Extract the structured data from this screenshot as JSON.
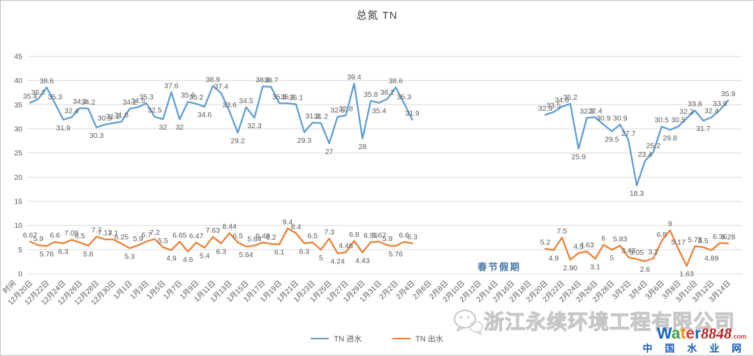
{
  "title": "总氮 TN",
  "holiday_note": {
    "text": "春节假期",
    "color": "#4574a9"
  },
  "legend": [
    {
      "label": "TN 进水",
      "color": "#5b9bd5"
    },
    {
      "label": "TN 出水",
      "color": "#ed7d31"
    }
  ],
  "watermark": {
    "company": "浙江永续环境工程有限公司",
    "wechat_icon": "wechat-bubbles",
    "logo_letters": [
      {
        "ch": "W",
        "color": "#1565c0"
      },
      {
        "ch": "a",
        "color": "#43a047"
      },
      {
        "ch": "t",
        "color": "#fb8c00"
      },
      {
        "ch": "e",
        "color": "#e53935"
      },
      {
        "ch": "r",
        "color": "#1565c0"
      }
    ],
    "logo_number": "8848",
    "logo_number_color": "#b71c1c",
    "logo_tld": ".com",
    "logo_tld_color": "#e53935",
    "site_name": "中 国 水 业 网",
    "site_name_color": "#1259be"
  },
  "chart_data": {
    "type": "line",
    "title": "总氮 TN",
    "grid": "horizontal",
    "legend_position": "bottom",
    "y_axis": {
      "min": 0,
      "max": 45,
      "step": 5,
      "ticks": [
        "0",
        "5",
        "10",
        "15",
        "20",
        "25",
        "30",
        "35",
        "40",
        "45"
      ]
    },
    "x_axis": {
      "axis_title": "时间",
      "tick_every_days": 2,
      "tick_labels": [
        "12月20日",
        "12月22日",
        "12月24日",
        "12月26日",
        "12月28日",
        "12月30日",
        "1月1日",
        "1月3日",
        "1月5日",
        "1月7日",
        "1月9日",
        "1月11日",
        "1月13日",
        "1月15日",
        "1月17日",
        "1月19日",
        "1月21日",
        "1月23日",
        "1月25日",
        "1月27日",
        "1月29日",
        "1月31日",
        "2月2日",
        "2月4日",
        "2月6日",
        "2月8日",
        "2月10日",
        "2月12日",
        "2月14日",
        "2月16日",
        "2月18日",
        "2月20日",
        "2月22日",
        "2月24日",
        "2月26日",
        "2月28日",
        "3月2日",
        "3月4日",
        "3月6日",
        "3月8日",
        "3月10日",
        "3月12日",
        "3月14日"
      ],
      "days_total": 85
    },
    "gap_note": "no data between 2月5日 and 2月19日 (春节假期)",
    "series": [
      {
        "name": "TN 进水",
        "color": "#5b9bd5",
        "segments": [
          {
            "start_index": 0,
            "values": [
              "35.4",
              "36.2",
              "38.6",
              "35.3",
              "31.9",
              "32.4",
              "34.3",
              "34.2",
              "30.3",
              "30.9",
              "31.2",
              "31.5",
              "34.2",
              "34.5",
              "35.3",
              "32.5",
              "32",
              "37.6",
              "32",
              "35.6",
              "35.2",
              "34.6",
              "38.9",
              "37.4",
              "33.6",
              "29.2",
              "34.5",
              "32.3",
              "38.8",
              "38.7",
              "35.3",
              "35.3",
              "35.1",
              "29.3",
              "31.3",
              "31.2",
              "27",
              "32.5",
              "32.8",
              "39.4",
              "28",
              "35.8",
              "35.4",
              "36.2",
              "38.6",
              "35.3",
              "31.9"
            ]
          },
          {
            "start_index": 62,
            "values": [
              "32.9",
              "33.5",
              "34.6",
              "35.2",
              "25.9",
              "32.3",
              "32.4",
              "30.9",
              "29.5",
              "30.9",
              "27.7",
              "18.3",
              "23.4",
              "25.2",
              "30.5",
              "29.8",
              "30.5",
              "32.2",
              "33.8",
              "31.7",
              "32.4",
              "33.9",
              "35.9"
            ]
          }
        ]
      },
      {
        "name": "TN 出水",
        "color": "#ed7d31",
        "segments": [
          {
            "start_index": 0,
            "values": [
              "6.67",
              "5.9",
              "5.76",
              "6.6",
              "6.3",
              "7.05",
              "6.5",
              "5.8",
              "7.7",
              "7.13",
              "7.1",
              "6.25",
              "5.3",
              "5.9",
              "6.7",
              "7.2",
              "5.5",
              "4.9",
              "6.65",
              "4.6",
              "6.47",
              "5.4",
              "7.63",
              "6.3",
              "8.44",
              "6.5",
              "5.64",
              "5.84",
              "6.48",
              "6.2",
              "6.1",
              "9.4",
              "8.4",
              "6.3",
              "6.5",
              "5",
              "7.3",
              "4.24",
              "4.46",
              "6.8",
              "4.43",
              "6.55",
              "6.67",
              "5.9",
              "5.76",
              "6.6",
              "6.3"
            ]
          },
          {
            "start_index": 62,
            "values": [
              "5.2",
              "4.9",
              "7.5",
              "2.90",
              "4.3",
              "4.63",
              "3.1",
              "6",
              "5",
              "5.83",
              "3.43",
              "3.05",
              "2.6",
              "3.2",
              "6.8",
              "9",
              "5.17",
              "1.63",
              "5.73",
              "5.5",
              "4.89",
              "6.36",
              "6.28"
            ]
          }
        ]
      }
    ]
  }
}
